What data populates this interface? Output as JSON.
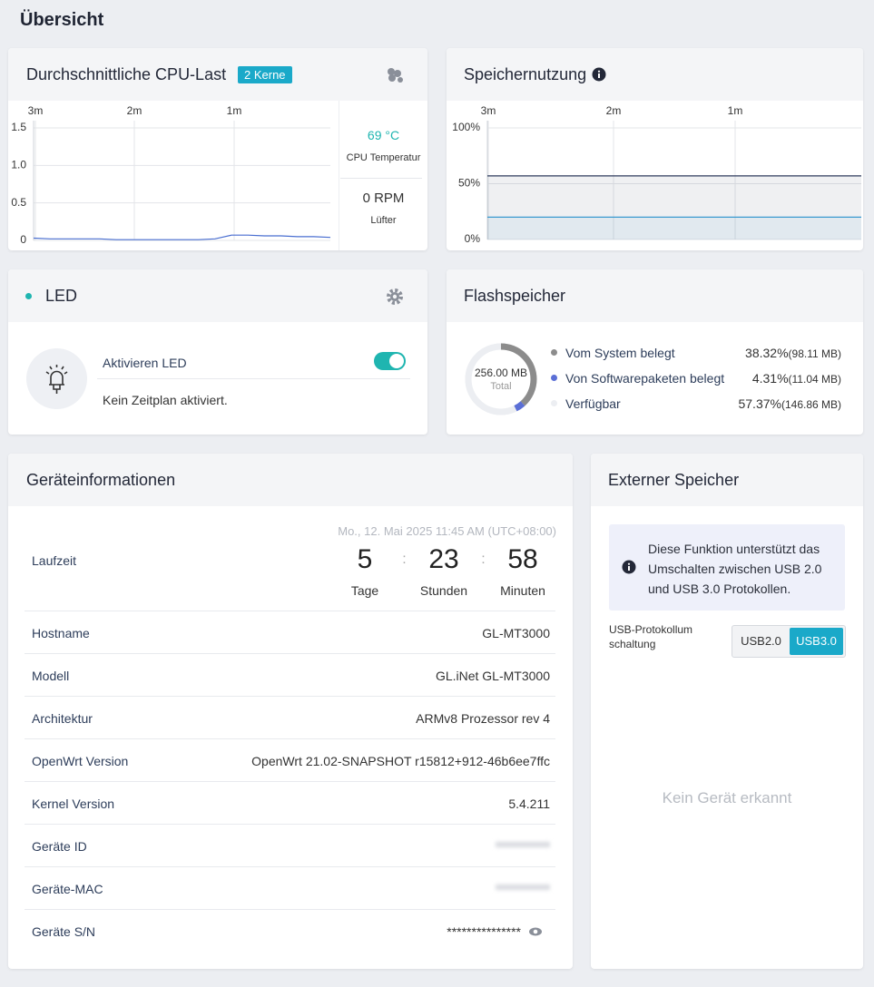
{
  "page_title": "Übersicht",
  "cpu": {
    "title": "Durchschnittliche CPU-Last",
    "badge": "2 Kerne",
    "chart": {
      "type": "line",
      "x_labels": [
        "3m",
        "2m",
        "1m"
      ],
      "ylim": [
        0,
        1.5
      ],
      "yticks": [
        0,
        0.5,
        {
          "value": 1,
          "label": "1.0"
        },
        1.5
      ],
      "grid": true,
      "series": [
        {
          "color": "#4a6fd1",
          "values": [
            0.03,
            0.02,
            0.02,
            0.02,
            0.02,
            0.01,
            0.01,
            0.01,
            0.01,
            0.01,
            0.01,
            0.02,
            0.07,
            0.07,
            0.06,
            0.06,
            0.05,
            0.05,
            0.04
          ]
        }
      ]
    },
    "temperature": "69 °C",
    "temperature_label": "CPU Temperatur",
    "fan": "0 RPM",
    "fan_label": "Lüfter"
  },
  "memory": {
    "title": "Speichernutzung",
    "chart": {
      "type": "area",
      "x_labels": [
        "3m",
        "2m",
        "1m"
      ],
      "ylim": [
        0,
        100
      ],
      "yticks": [
        {
          "value": 0,
          "label": "0%"
        },
        {
          "value": 50,
          "label": "50%"
        },
        {
          "value": 100,
          "label": "100%"
        }
      ],
      "grid": true,
      "series": [
        {
          "color": "#2e3a5c",
          "values": [
            57,
            57,
            57,
            57,
            57,
            57,
            57,
            57,
            57,
            57
          ]
        },
        {
          "color": "#3a9ad0",
          "values": [
            20,
            20,
            20,
            20,
            20,
            20,
            20,
            20,
            20,
            20
          ]
        }
      ]
    }
  },
  "led": {
    "title": "LED",
    "enable_label": "Aktivieren LED",
    "enabled": true,
    "schedule": "Kein Zeitplan aktiviert."
  },
  "flash": {
    "title": "Flashspeicher",
    "total": "256.00 MB",
    "total_label": "Total",
    "items": [
      {
        "name": "Vom System belegt",
        "percent": 38.32,
        "percent_label": "38.32%",
        "size": "(98.11 MB)",
        "color": "#8c8c8c"
      },
      {
        "name": "Von Softwarepaketen belegt",
        "percent": 4.31,
        "percent_label": "4.31%",
        "size": "(11.04 MB)",
        "color": "#5b6fd6"
      },
      {
        "name": "Verfügbar",
        "percent": 57.37,
        "percent_label": "57.37%",
        "size": "(146.86 MB)",
        "color": "#eceef2"
      }
    ]
  },
  "device": {
    "title": "Geräteinformationen",
    "timestamp": "Mo., 12. Mai 2025 11:45 AM (UTC+08:00)",
    "uptime_label": "Laufzeit",
    "separator": ":",
    "uptime": [
      {
        "value": "5",
        "unit": "Tage"
      },
      {
        "value": "23",
        "unit": "Stunden"
      },
      {
        "value": "58",
        "unit": "Minuten"
      }
    ],
    "rows": [
      {
        "label": "Hostname",
        "value": "GL-MT3000"
      },
      {
        "label": "Modell",
        "value": "GL.iNet GL-MT3000"
      },
      {
        "label": "Architektur",
        "value": "ARMv8 Prozessor rev 4"
      },
      {
        "label": "OpenWrt Version",
        "value": "OpenWrt 21.02-SNAPSHOT r15812+912-46b6ee7ffc"
      },
      {
        "label": "Kernel Version",
        "value": "5.4.211"
      },
      {
        "label": "Geräte ID"
      },
      {
        "label": "Geräte-MAC"
      },
      {
        "label": "Geräte S/N",
        "value": "***************"
      }
    ]
  },
  "external": {
    "title": "Externer Speicher",
    "info": "Diese Funktion unterstützt das Umschalten zwischen USB 2.0 und USB 3.0 Protokollen.",
    "switch_label": "USB-Protokollumschaltung",
    "options": [
      "USB2.0",
      "USB3.0"
    ],
    "selected": 1,
    "empty": "Kein Gerät erkannt"
  }
}
